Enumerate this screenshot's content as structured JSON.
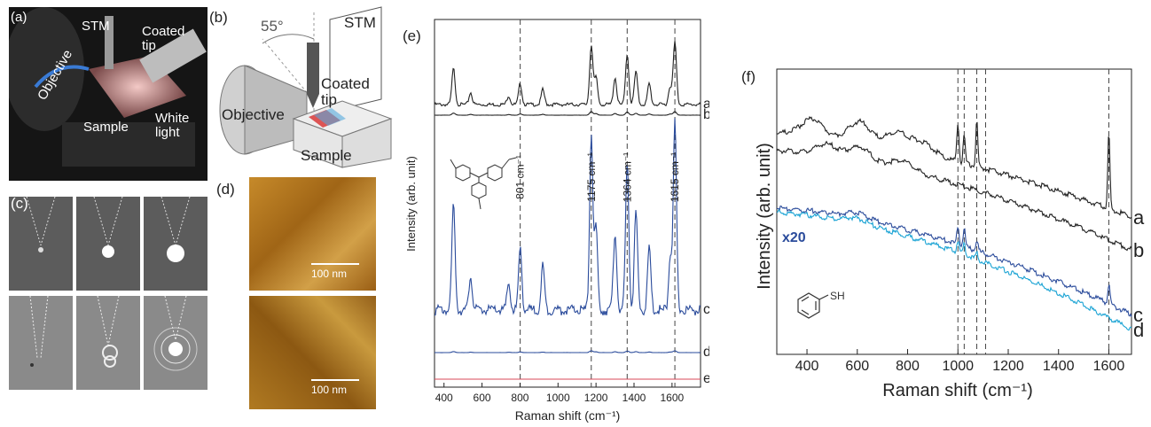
{
  "panel_a": {
    "label": "(a)",
    "labels": {
      "stm": "STM",
      "coated_tip": "Coated\ntip",
      "objective": "Objective",
      "sample": "Sample",
      "white_light": "White\nlight"
    }
  },
  "panel_b": {
    "label": "(b)",
    "angle": "55°",
    "labels": {
      "stm": "STM",
      "coated_tip": "Coated\ntip",
      "objective": "Objective",
      "sample": "Sample"
    }
  },
  "panel_c": {
    "label": "(c)"
  },
  "panel_d": {
    "label": "(d)",
    "scalebar_top": "100 nm",
    "scalebar_bottom": "100 nm"
  },
  "colors": {
    "black_trace": "#222222",
    "blue_trace": "#2a4b9b",
    "red_trace": "#d94a5a",
    "cyan_trace": "#1aa3d4",
    "x20_label": "#2a4b9b"
  },
  "chart_data": [
    {
      "type": "line",
      "panel": "(e)",
      "xlabel": "Raman shift (cm⁻¹)",
      "ylabel": "Intensity (arb. unit)",
      "xlim": [
        350,
        1750
      ],
      "xticks": [
        400,
        600,
        800,
        1000,
        1200,
        1400,
        1600
      ],
      "peaks": [
        {
          "x": 801,
          "label": "801 cm⁻¹"
        },
        {
          "x": 1175,
          "label": "1175 cm⁻¹"
        },
        {
          "x": 1364,
          "label": "1364 cm⁻¹"
        },
        {
          "x": 1615,
          "label": "1615 cm⁻¹"
        }
      ],
      "series": [
        {
          "name": "a",
          "color": "#222222",
          "offset": 8.4,
          "scale": 1.1
        },
        {
          "name": "b",
          "color": "#222222",
          "offset": 7.3,
          "scale": 0.05
        },
        {
          "name": "c",
          "color": "#2a4b9b",
          "offset": 1.6,
          "scale": 4.2
        },
        {
          "name": "d",
          "color": "#2a4b9b",
          "offset": 0.75,
          "scale": 0.03
        },
        {
          "name": "e",
          "color": "#d94a5a",
          "offset": 0.15,
          "scale": 0.0
        }
      ]
    },
    {
      "type": "line",
      "panel": "(f)",
      "xlabel": "Raman shift (cm⁻¹)",
      "ylabel": "Intensity (arb. unit)",
      "xlim": [
        280,
        1690
      ],
      "xticks": [
        400,
        600,
        800,
        1000,
        1200,
        1400,
        1600
      ],
      "dashed_lines": [
        1000,
        1025,
        1075,
        1110,
        1600
      ],
      "annotation": "x20",
      "molecule_label": "SH",
      "series": [
        {
          "name": "a",
          "color": "#222222"
        },
        {
          "name": "b",
          "color": "#222222"
        },
        {
          "name": "c",
          "color": "#2a4b9b"
        },
        {
          "name": "d",
          "color": "#1aa3d4"
        }
      ]
    }
  ]
}
